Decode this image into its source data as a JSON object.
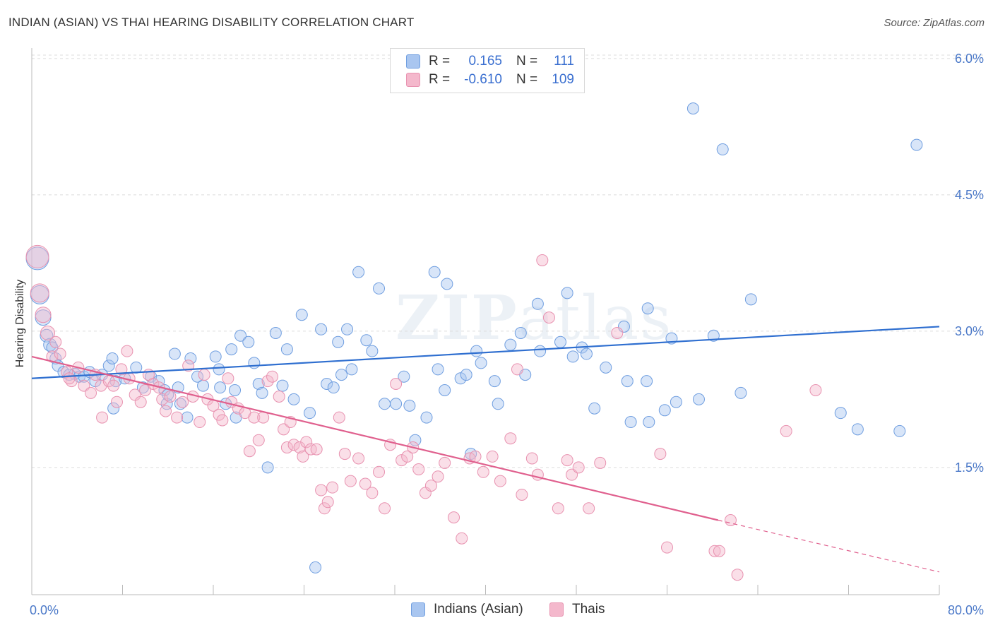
{
  "header": {
    "title": "INDIAN (ASIAN) VS THAI HEARING DISABILITY CORRELATION CHART",
    "source": "Source: ZipAtlas.com"
  },
  "watermark": {
    "zip": "ZIP",
    "atlas": "atlas"
  },
  "legend": {
    "rows": [
      {
        "r_label": "R =",
        "r_value": "0.165",
        "n_label": "N =",
        "n_value": "111"
      },
      {
        "r_label": "R =",
        "r_value": "-0.610",
        "n_label": "N =",
        "n_value": "109"
      }
    ]
  },
  "bottom_legend": {
    "series1": "Indians (Asian)",
    "series2": "Thais"
  },
  "colors": {
    "blue_fill": "#a9c6f0",
    "blue_stroke": "#6f9ee0",
    "blue_line": "#2f6fd0",
    "pink_fill": "#f4b8cc",
    "pink_stroke": "#e892b0",
    "pink_line": "#e0608e",
    "grid": "#dcdcdc",
    "tick_text": "#4a78c8"
  },
  "chart_data": {
    "type": "scatter",
    "title": "INDIAN (ASIAN) VS THAI HEARING DISABILITY CORRELATION CHART",
    "xlabel": "",
    "ylabel": "Hearing Disability",
    "xlim": [
      0,
      80
    ],
    "ylim": [
      0.1,
      6.1
    ],
    "x_tick_labels": [
      "0.0%",
      "80.0%"
    ],
    "y_ticks": [
      1.5,
      3.0,
      4.5,
      6.0
    ],
    "y_tick_labels": [
      "1.5%",
      "3.0%",
      "4.5%",
      "6.0%"
    ],
    "grid": "horizontal dashed",
    "legend_position": "top-center",
    "series": [
      {
        "name": "Indians (Asian)",
        "trend": {
          "x": [
            0,
            80
          ],
          "y": [
            2.48,
            3.05
          ]
        },
        "points": [
          [
            0.5,
            3.8,
            16
          ],
          [
            0.7,
            3.4,
            13
          ],
          [
            1,
            3.15,
            11
          ],
          [
            1.3,
            2.95,
            9
          ],
          [
            1.6,
            2.85,
            9
          ],
          [
            1.8,
            2.82,
            8
          ],
          [
            2.1,
            2.7,
            8
          ],
          [
            2.3,
            2.62,
            8
          ],
          [
            2.8,
            2.55,
            8
          ],
          [
            3.3,
            2.52,
            8
          ],
          [
            3.8,
            2.53,
            8
          ],
          [
            4.2,
            2.5,
            8
          ],
          [
            4.6,
            2.5,
            8
          ],
          [
            5.1,
            2.55,
            8
          ],
          [
            5.6,
            2.45,
            8
          ],
          [
            6.2,
            2.52,
            8
          ],
          [
            6.8,
            2.62,
            8
          ],
          [
            7.1,
            2.7,
            8
          ],
          [
            7.4,
            2.45,
            8
          ],
          [
            7.2,
            2.15,
            8
          ],
          [
            8.2,
            2.48,
            8
          ],
          [
            9.2,
            2.6,
            8
          ],
          [
            9.8,
            2.38,
            8
          ],
          [
            10.5,
            2.5,
            8
          ],
          [
            11.2,
            2.45,
            8
          ],
          [
            11.7,
            2.35,
            8
          ],
          [
            11.9,
            2.2,
            8
          ],
          [
            12,
            2.3,
            8
          ],
          [
            12.6,
            2.75,
            8
          ],
          [
            12.9,
            2.38,
            8
          ],
          [
            13.1,
            2.2,
            8
          ],
          [
            13.7,
            2.05,
            8
          ],
          [
            14,
            2.7,
            8
          ],
          [
            14.6,
            2.5,
            8
          ],
          [
            15.1,
            2.4,
            8
          ],
          [
            16.2,
            2.72,
            8
          ],
          [
            16.5,
            2.58,
            8
          ],
          [
            16.6,
            2.38,
            8
          ],
          [
            17.1,
            2.2,
            8
          ],
          [
            17.6,
            2.8,
            8
          ],
          [
            17.9,
            2.35,
            8
          ],
          [
            18,
            2.05,
            8
          ],
          [
            18.4,
            2.95,
            8
          ],
          [
            19.1,
            2.88,
            8
          ],
          [
            19.6,
            2.65,
            8
          ],
          [
            20,
            2.42,
            8
          ],
          [
            20.3,
            2.32,
            8
          ],
          [
            21.5,
            2.98,
            8
          ],
          [
            22.5,
            2.8,
            8
          ],
          [
            22.1,
            2.4,
            8
          ],
          [
            23.1,
            2.25,
            8
          ],
          [
            23.8,
            3.18,
            8
          ],
          [
            24.5,
            2.1,
            8
          ],
          [
            25.5,
            3.02,
            8
          ],
          [
            26,
            2.42,
            8
          ],
          [
            26.6,
            2.38,
            8
          ],
          [
            27,
            2.88,
            8
          ],
          [
            27.3,
            2.52,
            8
          ],
          [
            27.8,
            3.02,
            8
          ],
          [
            28.2,
            2.58,
            8
          ],
          [
            28.8,
            3.65,
            8
          ],
          [
            29.5,
            2.9,
            8
          ],
          [
            30,
            2.78,
            8
          ],
          [
            30.6,
            3.47,
            8
          ],
          [
            31.1,
            2.2,
            8
          ],
          [
            32.1,
            2.2,
            8
          ],
          [
            32.8,
            2.5,
            8
          ],
          [
            33.3,
            2.18,
            8
          ],
          [
            33.8,
            1.8,
            8
          ],
          [
            34.8,
            2.05,
            8
          ],
          [
            35.5,
            3.65,
            8
          ],
          [
            35.8,
            2.58,
            8
          ],
          [
            36.4,
            2.35,
            8
          ],
          [
            36.6,
            3.52,
            8
          ],
          [
            37.8,
            2.48,
            8
          ],
          [
            38.3,
            2.52,
            8
          ],
          [
            38.7,
            1.65,
            8
          ],
          [
            39.2,
            2.78,
            8
          ],
          [
            39.6,
            2.65,
            8
          ],
          [
            40.8,
            2.45,
            8
          ],
          [
            41.1,
            2.2,
            8
          ],
          [
            42.2,
            2.85,
            8
          ],
          [
            43.1,
            2.98,
            8
          ],
          [
            43.5,
            2.52,
            8
          ],
          [
            44.6,
            3.3,
            8
          ],
          [
            44.8,
            2.78,
            8
          ],
          [
            46.6,
            2.88,
            8
          ],
          [
            47.2,
            3.42,
            8
          ],
          [
            47.7,
            2.72,
            8
          ],
          [
            48.5,
            2.82,
            8
          ],
          [
            48.9,
            2.75,
            8
          ],
          [
            49.6,
            2.15,
            8
          ],
          [
            50.6,
            2.6,
            8
          ],
          [
            52.2,
            3.05,
            8
          ],
          [
            52.5,
            2.45,
            8
          ],
          [
            52.8,
            2.0,
            8
          ],
          [
            54.3,
            3.25,
            8
          ],
          [
            54.2,
            2.45,
            8
          ],
          [
            54.4,
            2.0,
            8
          ],
          [
            55.8,
            2.13,
            8
          ],
          [
            56.4,
            2.92,
            8
          ],
          [
            56.8,
            2.22,
            8
          ],
          [
            58.3,
            5.45,
            8
          ],
          [
            58.8,
            2.25,
            8
          ],
          [
            60.9,
            5.0,
            8
          ],
          [
            60.1,
            2.95,
            8
          ],
          [
            62.5,
            2.32,
            8
          ],
          [
            63.4,
            3.35,
            8
          ],
          [
            71.3,
            2.1,
            8
          ],
          [
            72.8,
            1.92,
            8
          ],
          [
            76.5,
            1.9,
            8
          ],
          [
            78,
            5.05,
            8
          ],
          [
            25,
            0.4,
            8
          ],
          [
            20.8,
            1.5,
            8
          ]
        ]
      },
      {
        "name": "Thais",
        "trend": {
          "x": [
            0,
            60.5
          ],
          "y": [
            2.72,
            0.92
          ]
        },
        "trend_dashed": {
          "x": [
            60.5,
            80
          ],
          "y": [
            0.92,
            0.35
          ]
        },
        "points": [
          [
            0.5,
            3.82,
            16
          ],
          [
            0.7,
            3.42,
            13
          ],
          [
            1,
            3.18,
            11
          ],
          [
            1.4,
            2.98,
            10
          ],
          [
            1.8,
            2.72,
            8
          ],
          [
            2.1,
            2.88,
            8
          ],
          [
            2.5,
            2.75,
            8
          ],
          [
            3.1,
            2.55,
            8
          ],
          [
            3.5,
            2.45,
            8
          ],
          [
            3.3,
            2.48,
            8
          ],
          [
            4.1,
            2.6,
            8
          ],
          [
            4.6,
            2.4,
            8
          ],
          [
            5.2,
            2.32,
            8
          ],
          [
            5.6,
            2.52,
            8
          ],
          [
            6.1,
            2.4,
            8
          ],
          [
            6.2,
            2.05,
            8
          ],
          [
            6.8,
            2.45,
            8
          ],
          [
            7.2,
            2.4,
            8
          ],
          [
            7.5,
            2.22,
            8
          ],
          [
            7.9,
            2.58,
            8
          ],
          [
            8.4,
            2.78,
            8
          ],
          [
            8.6,
            2.48,
            8
          ],
          [
            9.1,
            2.3,
            8
          ],
          [
            9.6,
            2.22,
            8
          ],
          [
            10,
            2.35,
            8
          ],
          [
            10.3,
            2.52,
            8
          ],
          [
            10.7,
            2.42,
            8
          ],
          [
            11.2,
            2.38,
            8
          ],
          [
            11.5,
            2.25,
            8
          ],
          [
            11.8,
            2.12,
            8
          ],
          [
            12.2,
            2.28,
            8
          ],
          [
            12.8,
            2.05,
            8
          ],
          [
            13.3,
            2.22,
            8
          ],
          [
            13.8,
            2.62,
            8
          ],
          [
            14.2,
            2.28,
            8
          ],
          [
            14.8,
            2.0,
            8
          ],
          [
            15.2,
            2.52,
            8
          ],
          [
            15.5,
            2.25,
            8
          ],
          [
            16,
            2.18,
            8
          ],
          [
            16.5,
            2.08,
            8
          ],
          [
            16.8,
            2.02,
            8
          ],
          [
            17.3,
            2.48,
            8
          ],
          [
            17.6,
            2.22,
            8
          ],
          [
            18.2,
            2.15,
            8
          ],
          [
            18.8,
            2.1,
            8
          ],
          [
            19.2,
            1.68,
            8
          ],
          [
            19.6,
            2.05,
            8
          ],
          [
            20,
            1.8,
            8
          ],
          [
            20.4,
            2.05,
            8
          ],
          [
            20.8,
            2.45,
            8
          ],
          [
            21.2,
            2.5,
            8
          ],
          [
            21.8,
            2.28,
            8
          ],
          [
            22.2,
            1.92,
            8
          ],
          [
            22.5,
            1.72,
            8
          ],
          [
            22.8,
            2.0,
            8
          ],
          [
            23.1,
            1.75,
            8
          ],
          [
            23.6,
            1.72,
            8
          ],
          [
            23.9,
            1.62,
            8
          ],
          [
            24.2,
            1.78,
            8
          ],
          [
            24.6,
            1.7,
            8
          ],
          [
            25.1,
            1.7,
            8
          ],
          [
            25.5,
            1.25,
            8
          ],
          [
            25.8,
            1.05,
            8
          ],
          [
            26.1,
            1.12,
            8
          ],
          [
            26.5,
            1.28,
            8
          ],
          [
            27.1,
            2.05,
            8
          ],
          [
            27.6,
            1.65,
            8
          ],
          [
            28.1,
            1.35,
            8
          ],
          [
            28.8,
            1.6,
            8
          ],
          [
            29.4,
            1.32,
            8
          ],
          [
            30,
            1.22,
            8
          ],
          [
            30.6,
            1.45,
            8
          ],
          [
            31.1,
            1.05,
            8
          ],
          [
            31.6,
            1.75,
            8
          ],
          [
            32.1,
            2.42,
            8
          ],
          [
            32.6,
            1.58,
            8
          ],
          [
            33.1,
            1.62,
            8
          ],
          [
            33.6,
            1.72,
            8
          ],
          [
            34.1,
            1.48,
            8
          ],
          [
            34.7,
            1.22,
            8
          ],
          [
            35.2,
            1.3,
            8
          ],
          [
            35.8,
            1.4,
            8
          ],
          [
            36.4,
            1.55,
            8
          ],
          [
            37.2,
            0.95,
            8
          ],
          [
            37.9,
            0.72,
            8
          ],
          [
            38.6,
            1.6,
            8
          ],
          [
            39.1,
            1.62,
            8
          ],
          [
            39.8,
            1.45,
            8
          ],
          [
            40.6,
            1.62,
            8
          ],
          [
            41.3,
            1.35,
            8
          ],
          [
            42.2,
            1.82,
            8
          ],
          [
            42.8,
            2.58,
            8
          ],
          [
            43.2,
            1.2,
            8
          ],
          [
            44.1,
            1.6,
            8
          ],
          [
            44.6,
            1.42,
            8
          ],
          [
            45,
            3.78,
            8
          ],
          [
            45.6,
            3.15,
            8
          ],
          [
            46.4,
            1.05,
            8
          ],
          [
            47.2,
            1.58,
            8
          ],
          [
            47.6,
            1.42,
            8
          ],
          [
            48.2,
            1.5,
            8
          ],
          [
            49.1,
            1.05,
            8
          ],
          [
            50.1,
            1.55,
            8
          ],
          [
            51.6,
            2.98,
            8
          ],
          [
            55.4,
            1.65,
            8
          ],
          [
            56,
            0.62,
            8
          ],
          [
            60.2,
            0.58,
            8
          ],
          [
            60.6,
            0.58,
            8
          ],
          [
            61.6,
            0.92,
            8
          ],
          [
            62.2,
            0.32,
            8
          ],
          [
            66.5,
            1.9,
            8
          ],
          [
            69.1,
            2.35,
            8
          ]
        ]
      }
    ]
  }
}
